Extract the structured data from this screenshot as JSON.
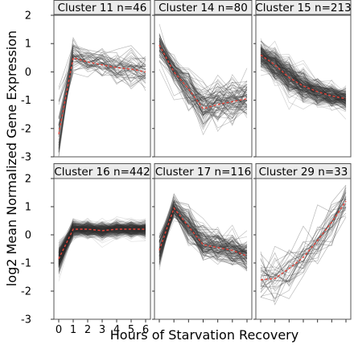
{
  "chart_data": {
    "type": "line",
    "ylabel": "log2 Mean Normalized Gene Expression",
    "xlabel": "Hours of Starvation Recovery",
    "x": [
      0,
      1,
      2,
      3,
      4,
      5,
      6
    ],
    "x_tick_labels": [
      "0",
      "1",
      "2",
      "3",
      "4",
      "5",
      "6"
    ],
    "ylim": [
      -3,
      2
    ],
    "y_ticks": [
      2,
      1,
      0,
      -1,
      -2,
      -3
    ],
    "y_tick_labels": [
      "2",
      "1",
      "0",
      "-1",
      "-2",
      "-3"
    ],
    "panels": [
      {
        "title": "Cluster 11 n=46",
        "n": 46,
        "mean": [
          -2.2,
          0.5,
          0.35,
          0.25,
          0.15,
          0.1,
          0.0
        ],
        "spread": [
          0.55,
          0.35,
          0.3,
          0.3,
          0.3,
          0.3,
          0.3
        ],
        "line_alpha": 0.35
      },
      {
        "title": "Cluster 14 n=80",
        "n": 80,
        "mean": [
          0.95,
          0.0,
          -0.6,
          -1.3,
          -1.15,
          -1.05,
          -0.95
        ],
        "spread": [
          0.25,
          0.3,
          0.35,
          0.4,
          0.4,
          0.4,
          0.4
        ],
        "line_alpha": 0.3
      },
      {
        "title": "Cluster 15 n=213",
        "n": 213,
        "mean": [
          0.6,
          0.25,
          -0.2,
          -0.5,
          -0.7,
          -0.85,
          -0.95
        ],
        "spread": [
          0.25,
          0.3,
          0.35,
          0.3,
          0.25,
          0.22,
          0.2
        ],
        "line_alpha": 0.22
      },
      {
        "title": "Cluster 16 n=442",
        "n": 442,
        "mean": [
          -0.85,
          0.2,
          0.2,
          0.15,
          0.2,
          0.2,
          0.2
        ],
        "spread": [
          0.25,
          0.15,
          0.15,
          0.15,
          0.15,
          0.15,
          0.15
        ],
        "line_alpha": 0.15
      },
      {
        "title": "Cluster 17 n=116",
        "n": 116,
        "mean": [
          -0.55,
          0.95,
          0.3,
          -0.35,
          -0.45,
          -0.55,
          -0.75
        ],
        "spread": [
          0.3,
          0.2,
          0.3,
          0.3,
          0.3,
          0.3,
          0.3
        ],
        "line_alpha": 0.28
      },
      {
        "title": "Cluster 29 n=33",
        "n": 33,
        "mean": [
          -1.6,
          -1.55,
          -1.2,
          -0.8,
          -0.2,
          0.45,
          1.2
        ],
        "spread": [
          0.55,
          0.55,
          0.55,
          0.5,
          0.45,
          0.4,
          0.3
        ],
        "line_alpha": 0.35
      }
    ],
    "mean_line_style": "dashed",
    "colors": {
      "mean_line": "#e8443a",
      "gene_lines": "#333333",
      "strip_fill": "#ebebeb",
      "strip_border": "#555555"
    },
    "grid": false
  }
}
